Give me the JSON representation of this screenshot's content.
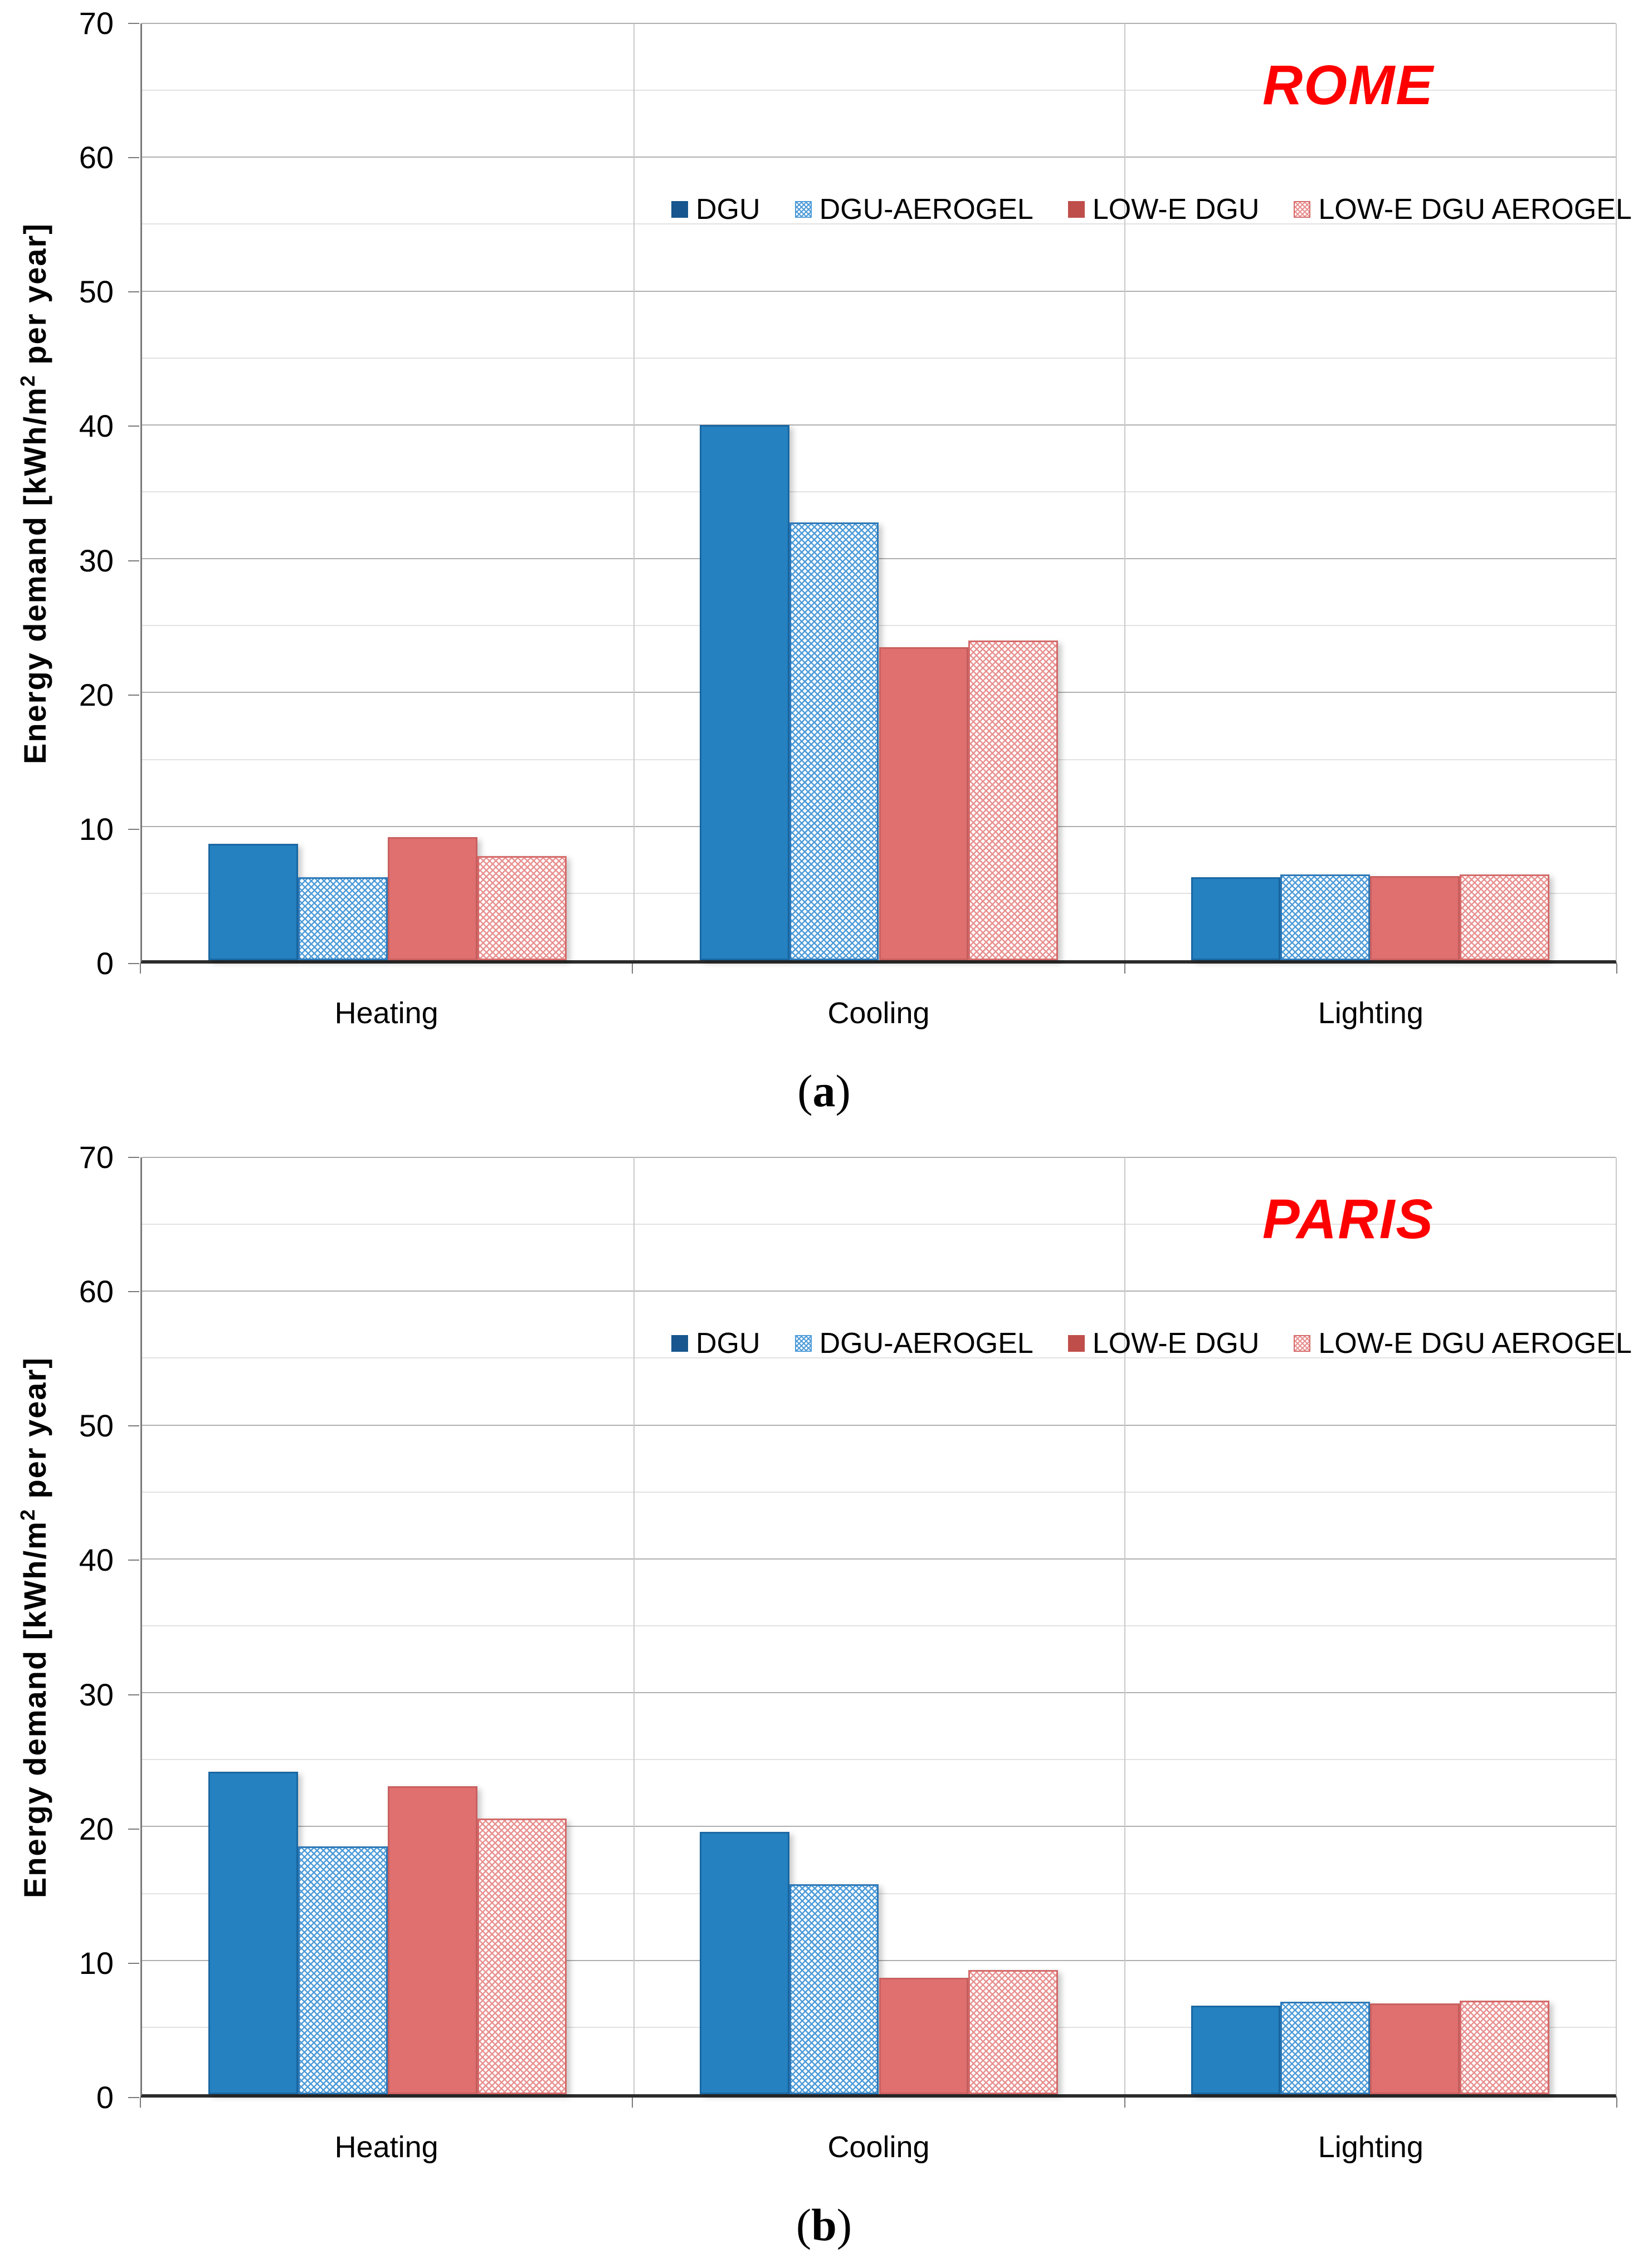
{
  "page_background": "#FFFFFF",
  "colors": {
    "city_title_red": "#FF0000",
    "bar_blue_solid": "#2581BF",
    "bar_blue_border": "#1967A3",
    "legend_blue_solid": "#17568E",
    "hatch_blue": "#4D9BD8",
    "hatch_blue_border": "#2E79B8",
    "bar_red_solid": "#E07070",
    "bar_red_border": "#C95F5F",
    "legend_red_solid": "#BF4E4B",
    "hatch_red": "#E89090",
    "hatch_red_border": "#D56A6A",
    "grid_major": "#AFAFAF",
    "grid_minor": "#E2E2E2",
    "axis_line": "#2B2B2B"
  },
  "chart_data": [
    {
      "type": "bar",
      "title": "ROME",
      "caption": {
        "open": "(",
        "letter": "a",
        "close": ")"
      },
      "ylabel": {
        "prefix": "Energy demand [kWh/m",
        "sup": "2",
        "suffix": " per year]"
      },
      "ylim": [
        0,
        70
      ],
      "y_major": 10,
      "y_minor": 5,
      "yticks": [
        "0",
        "10",
        "20",
        "30",
        "40",
        "50",
        "60",
        "70"
      ],
      "grid": true,
      "legend_position": "top-center-row",
      "categories": [
        "Heating",
        "Cooling",
        "Lighting"
      ],
      "series": [
        {
          "name": "DGU",
          "values": [
            8.7,
            40.0,
            6.2
          ]
        },
        {
          "name": "DGU-AEROGEL",
          "values": [
            6.2,
            32.7,
            6.4
          ]
        },
        {
          "name": "LOW-E DGU",
          "values": [
            9.2,
            23.4,
            6.3
          ]
        },
        {
          "name": "LOW-E DGU AEROGEL",
          "values": [
            7.8,
            23.9,
            6.4
          ]
        }
      ]
    },
    {
      "type": "bar",
      "title": "PARIS",
      "caption": {
        "open": "(",
        "letter": "b",
        "close": ")"
      },
      "ylabel": {
        "prefix": "Energy demand [kWh/m",
        "sup": "2",
        "suffix": " per year]"
      },
      "ylim": [
        0,
        70
      ],
      "y_major": 10,
      "y_minor": 5,
      "yticks": [
        "0",
        "10",
        "20",
        "30",
        "40",
        "50",
        "60",
        "70"
      ],
      "grid": true,
      "legend_position": "top-center-row",
      "categories": [
        "Heating",
        "Cooling",
        "Lighting"
      ],
      "series": [
        {
          "name": "DGU",
          "values": [
            24.1,
            19.6,
            6.6
          ]
        },
        {
          "name": "DGU-AEROGEL",
          "values": [
            18.5,
            15.7,
            6.9
          ]
        },
        {
          "name": "LOW-E DGU",
          "values": [
            23.0,
            8.7,
            6.8
          ]
        },
        {
          "name": "LOW-E DGU AEROGEL",
          "values": [
            20.6,
            9.3,
            7.0
          ]
        }
      ]
    }
  ]
}
